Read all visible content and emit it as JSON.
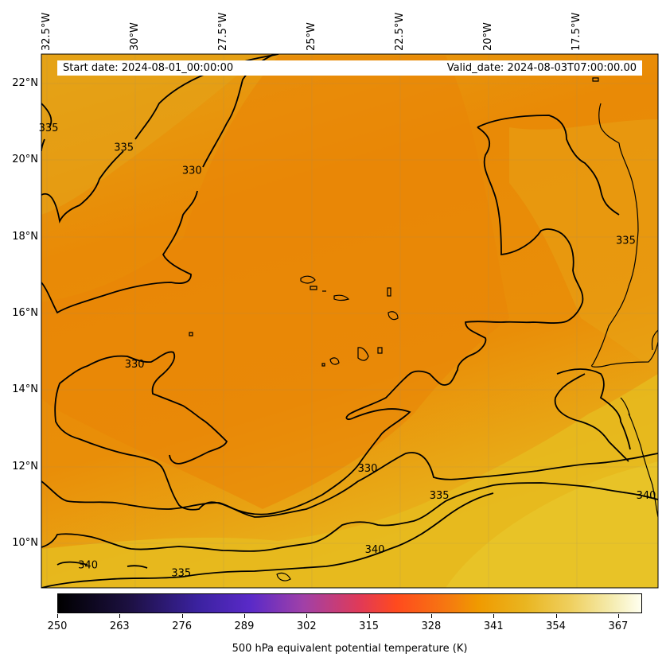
{
  "map": {
    "lon_labels": [
      "32.5°W",
      "30°W",
      "27.5°W",
      "25°W",
      "22.5°W",
      "20°W",
      "17.5°W"
    ],
    "lat_labels": [
      "22°N",
      "20°N",
      "18°N",
      "16°N",
      "14°N",
      "12°N",
      "10°N"
    ],
    "extent": {
      "lon_min": -32.5,
      "lon_max": -15.3,
      "lat_min": 9.0,
      "lat_max": 22.8
    },
    "contour_labels": [
      {
        "text": "335",
        "lon": -32.3,
        "lat": 20.8
      },
      {
        "text": "335",
        "lon": -30.2,
        "lat": 20.3
      },
      {
        "text": "330",
        "lon": -28.3,
        "lat": 19.7
      },
      {
        "text": "335",
        "lon": -16.2,
        "lat": 17.9
      },
      {
        "text": "330",
        "lon": -29.9,
        "lat": 14.7
      },
      {
        "text": "330",
        "lon": -23.4,
        "lat": 12.0
      },
      {
        "text": "335",
        "lon": -21.4,
        "lat": 11.3
      },
      {
        "text": "340",
        "lon": -23.2,
        "lat": 9.9
      },
      {
        "text": "340",
        "lon": -31.2,
        "lat": 9.5
      },
      {
        "text": "335",
        "lon": -28.6,
        "lat": 9.3
      },
      {
        "text": "340",
        "lon": -15.6,
        "lat": 11.3
      }
    ],
    "colors": {
      "field_warm": "#e98a06",
      "field_mid": "#eaa012",
      "field_yellow": "#e6c020",
      "contour": "#000000"
    }
  },
  "dates": {
    "start": "Start date: 2024-08-01_00:00:00",
    "valid": "Valid_date: 2024-08-03T07:00:00.00"
  },
  "colorbar": {
    "ticks": [
      "250",
      "263",
      "276",
      "289",
      "302",
      "315",
      "328",
      "341",
      "354",
      "367"
    ],
    "min": 250,
    "max": 372,
    "label": "500 hPa equivalent potential temperature (K)"
  }
}
